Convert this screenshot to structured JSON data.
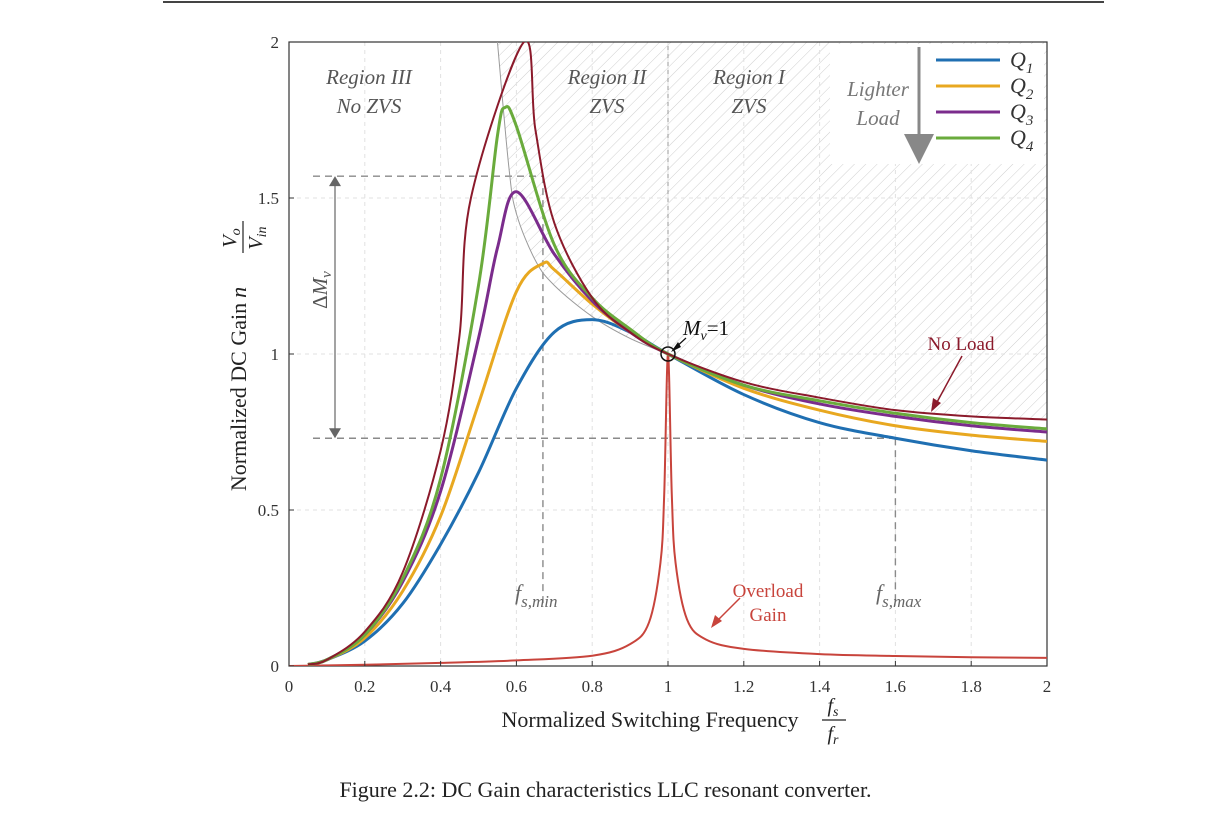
{
  "caption": "Figure 2.2: DC Gain characteristics LLC resonant converter.",
  "chart_data": {
    "type": "line",
    "xlabel": "Normalized Switching Frequency",
    "xlabel_fraction": {
      "num": "f_s",
      "den": "f_r"
    },
    "ylabel": "Normalized DC Gain",
    "ylabel_fraction": {
      "prefix": "n",
      "num": "V_o",
      "den": "V_in"
    },
    "xlim": [
      0,
      2
    ],
    "ylim": [
      0,
      2
    ],
    "xticks": [
      0,
      0.2,
      0.4,
      0.6,
      0.8,
      1,
      1.2,
      1.4,
      1.6,
      1.8,
      2
    ],
    "xtick_labels": [
      "0",
      "0.2",
      "0.4",
      "0.6",
      "0.8",
      "1",
      "1.2",
      "1.4",
      "1.6",
      "1.8",
      "2"
    ],
    "yticks": [
      0,
      0.5,
      1,
      1.5,
      2
    ],
    "ytick_labels": [
      "0",
      "0.5",
      "1",
      "1.5",
      "2"
    ],
    "grid": true,
    "legend": {
      "position": "top-right",
      "entries": [
        "Q1",
        "Q2",
        "Q3",
        "Q4"
      ]
    },
    "series": [
      {
        "name": "Q1",
        "color": "#1f6fb2",
        "x": [
          0.05,
          0.1,
          0.2,
          0.3,
          0.4,
          0.5,
          0.6,
          0.7,
          0.8,
          0.9,
          1,
          1.2,
          1.4,
          1.6,
          1.8,
          2
        ],
        "y": [
          0.005,
          0.02,
          0.08,
          0.2,
          0.39,
          0.62,
          0.89,
          1.07,
          1.11,
          1.07,
          1.0,
          0.87,
          0.78,
          0.73,
          0.69,
          0.66
        ]
      },
      {
        "name": "Q2",
        "color": "#e8a820",
        "x": [
          0.05,
          0.1,
          0.2,
          0.3,
          0.4,
          0.5,
          0.6,
          0.67,
          0.7,
          0.8,
          0.9,
          1,
          1.2,
          1.4,
          1.6,
          1.8,
          2
        ],
        "y": [
          0.005,
          0.02,
          0.09,
          0.24,
          0.48,
          0.84,
          1.2,
          1.29,
          1.27,
          1.16,
          1.07,
          1.0,
          0.89,
          0.82,
          0.77,
          0.74,
          0.72
        ]
      },
      {
        "name": "Q3",
        "color": "#7b2c8c",
        "x": [
          0.05,
          0.1,
          0.2,
          0.3,
          0.4,
          0.5,
          0.55,
          0.6,
          0.7,
          0.8,
          0.9,
          1,
          1.2,
          1.4,
          1.6,
          1.8,
          2
        ],
        "y": [
          0.005,
          0.02,
          0.1,
          0.27,
          0.56,
          1.05,
          1.34,
          1.52,
          1.32,
          1.17,
          1.07,
          1.0,
          0.9,
          0.84,
          0.8,
          0.77,
          0.75
        ]
      },
      {
        "name": "Q4",
        "color": "#6aab3c",
        "x": [
          0.05,
          0.1,
          0.2,
          0.3,
          0.4,
          0.5,
          0.55,
          0.57,
          0.6,
          0.7,
          0.8,
          0.9,
          1,
          1.2,
          1.4,
          1.6,
          1.8,
          2
        ],
        "y": [
          0.005,
          0.02,
          0.1,
          0.28,
          0.6,
          1.22,
          1.7,
          1.79,
          1.73,
          1.35,
          1.18,
          1.08,
          1.0,
          0.9,
          0.85,
          0.81,
          0.78,
          0.76
        ]
      },
      {
        "name": "No Load",
        "color": "#8b1a2b",
        "x": [
          0.05,
          0.1,
          0.2,
          0.3,
          0.4,
          0.45,
          0.48,
          0.62,
          0.65,
          0.7,
          0.8,
          0.9,
          1,
          1.2,
          1.4,
          1.6,
          1.8,
          2
        ],
        "y": [
          0.005,
          0.02,
          0.11,
          0.3,
          0.69,
          1.06,
          1.5,
          2.0,
          1.72,
          1.42,
          1.18,
          1.07,
          1.0,
          0.91,
          0.86,
          0.82,
          0.8,
          0.79
        ]
      },
      {
        "name": "Overload Gain",
        "color": "#c8443c",
        "x": [
          0,
          0.2,
          0.4,
          0.6,
          0.8,
          0.9,
          0.95,
          0.98,
          0.99,
          1.0,
          1.01,
          1.02,
          1.05,
          1.1,
          1.2,
          1.4,
          1.6,
          1.8,
          2
        ],
        "y": [
          0,
          0.004,
          0.01,
          0.018,
          0.033,
          0.07,
          0.14,
          0.33,
          0.55,
          1.0,
          0.55,
          0.33,
          0.15,
          0.085,
          0.055,
          0.038,
          0.032,
          0.028,
          0.026
        ]
      },
      {
        "name": "ZVS boundary",
        "color": "#9a9a9a",
        "x": [
          0.55,
          0.58,
          0.6,
          0.65,
          0.7,
          0.8,
          0.9,
          1
        ],
        "y": [
          2.0,
          1.6,
          1.45,
          1.3,
          1.22,
          1.12,
          1.05,
          1.0
        ]
      }
    ],
    "regions": [
      {
        "name": "Region III",
        "sub": "No ZVS"
      },
      {
        "name": "Region II",
        "sub": "ZVS"
      },
      {
        "name": "Region I",
        "sub": "ZVS"
      }
    ],
    "annotations": {
      "mv_point": {
        "x": 1,
        "y": 1,
        "label": "M_v=1"
      },
      "no_load_label": "No Load",
      "overload_label_line1": "Overload",
      "overload_label_line2": "Gain",
      "lighter_load_line1": "Lighter",
      "lighter_load_line2": "Load",
      "fs_min": {
        "x": 0.67,
        "label": "f_s,min"
      },
      "fs_max": {
        "x": 1.6,
        "label": "f_s,max"
      },
      "delta_mv": {
        "label": "ΔM_v",
        "y_top": 1.57,
        "y_bottom": 0.73
      }
    }
  }
}
